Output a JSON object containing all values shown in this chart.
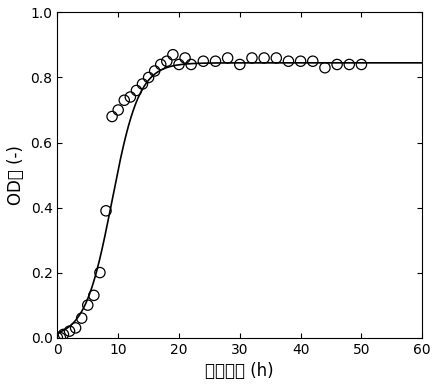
{
  "scatter_x": [
    0,
    0.5,
    1,
    2,
    3,
    4,
    5,
    6,
    7,
    8,
    9,
    10,
    11,
    12,
    13,
    14,
    15,
    16,
    17,
    18,
    19,
    20,
    21,
    22,
    24,
    26,
    28,
    30,
    32,
    34,
    36,
    38,
    40,
    42,
    44,
    46,
    48,
    50
  ],
  "scatter_y": [
    0.0,
    0.0,
    0.01,
    0.02,
    0.03,
    0.06,
    0.1,
    0.13,
    0.2,
    0.39,
    0.68,
    0.7,
    0.73,
    0.74,
    0.76,
    0.78,
    0.8,
    0.82,
    0.84,
    0.85,
    0.87,
    0.84,
    0.86,
    0.84,
    0.85,
    0.85,
    0.86,
    0.84,
    0.86,
    0.86,
    0.86,
    0.85,
    0.85,
    0.85,
    0.83,
    0.84,
    0.84,
    0.84
  ],
  "xlabel": "培养时间 (h)",
  "ylabel": "OD値 (-)",
  "xlim": [
    0,
    60
  ],
  "ylim": [
    0.0,
    1.0
  ],
  "xticks": [
    0,
    10,
    20,
    30,
    40,
    50,
    60
  ],
  "yticks": [
    0.0,
    0.2,
    0.4,
    0.6,
    0.8,
    1.0
  ],
  "logistic_K": 0.845,
  "logistic_r": 0.45,
  "logistic_t0": 9.0,
  "curve_color": "#000000",
  "scatter_color": "none",
  "scatter_edge_color": "#000000",
  "scatter_size": 55,
  "background_color": "#ffffff",
  "xlabel_fontsize": 12,
  "ylabel_fontsize": 12,
  "tick_labelsize": 10
}
